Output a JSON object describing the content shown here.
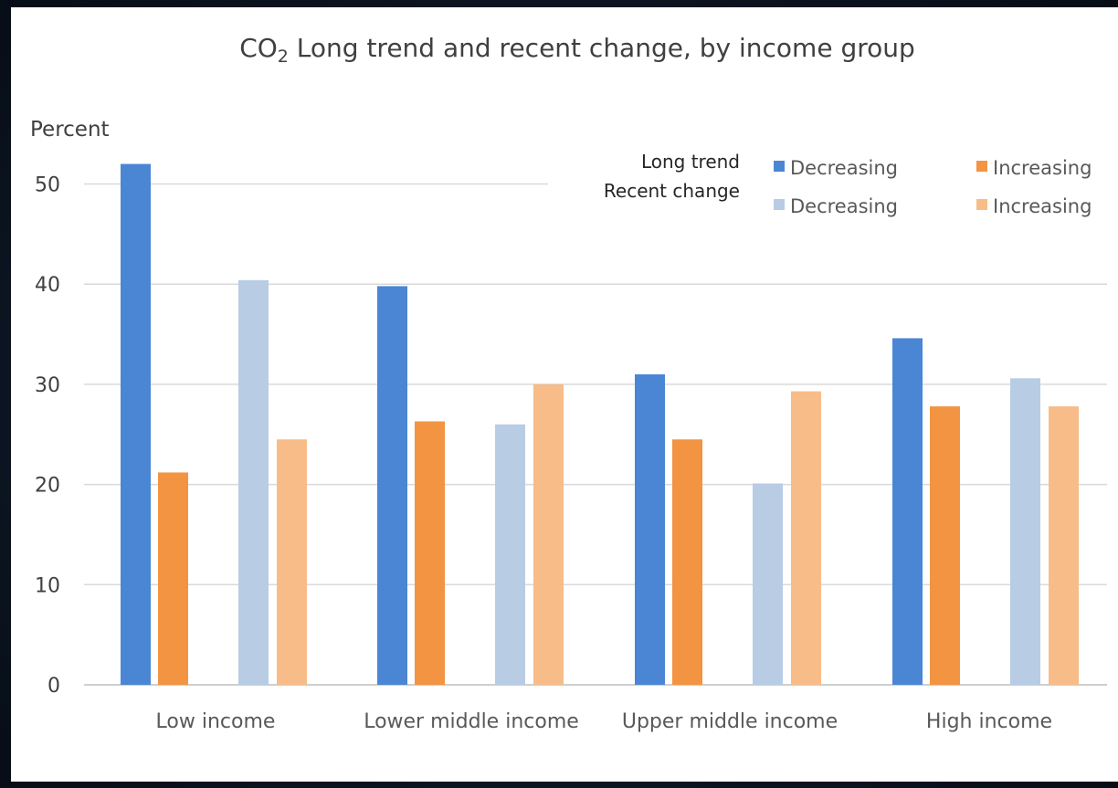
{
  "chart_data": {
    "type": "bar",
    "title_prefix": "CO",
    "title_sub": "2",
    "title_suffix": " Long trend and recent change, by income group",
    "ylabel": "Percent",
    "xlabel": "",
    "ylim": [
      0,
      55
    ],
    "yticks": [
      0,
      10,
      20,
      30,
      40,
      50
    ],
    "grid": true,
    "legend_position": "top-right",
    "legend": {
      "row_headings": [
        "Long trend",
        "Recent change"
      ]
    },
    "categories": [
      "Low income",
      "Lower middle income",
      "Upper middle income",
      "High income"
    ],
    "series": [
      {
        "name": "Decreasing",
        "group": "Long trend",
        "color": "#4a86d4",
        "values": [
          52.0,
          39.8,
          31.0,
          34.6
        ]
      },
      {
        "name": "Increasing",
        "group": "Long trend",
        "color": "#f39443",
        "values": [
          21.2,
          26.3,
          24.5,
          27.8
        ]
      },
      {
        "name": "Decreasing",
        "group": "Recent change",
        "color": "#b8cce4",
        "values": [
          40.4,
          26.0,
          20.1,
          30.6
        ]
      },
      {
        "name": "Increasing",
        "group": "Recent change",
        "color": "#f8bc88",
        "values": [
          24.5,
          30.0,
          29.3,
          27.8
        ]
      }
    ]
  }
}
